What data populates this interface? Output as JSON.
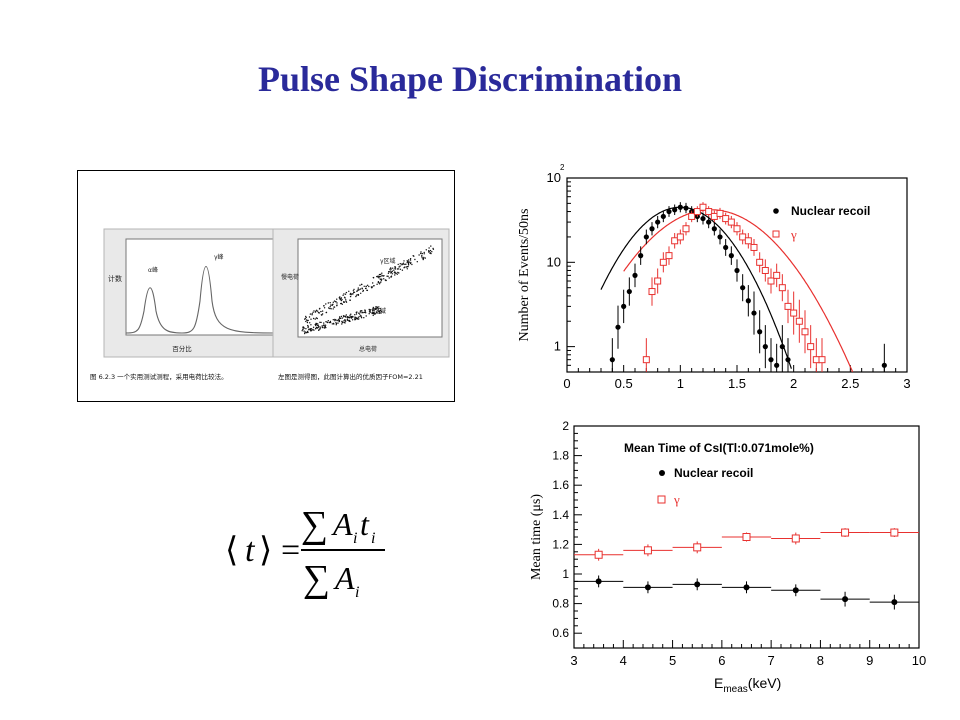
{
  "slide": {
    "title": "Pulse Shape Discrimination"
  },
  "inset_figure": {
    "left_plot": {
      "ylabel": "计数",
      "xlabel": "百分比",
      "peak_labels": [
        "α峰",
        "γ峰"
      ],
      "caption": "图 6.2.3  一个实用测试测程，采用电荷比较法。"
    },
    "right_plot": {
      "ylabel": "慢电荷",
      "xlabel": "总电荷",
      "region_labels": [
        "γ区域",
        "α区域"
      ],
      "caption": "左图是测得图，此图计算出的优质因子FOM=2.21"
    }
  },
  "formula": {
    "lhs": "t",
    "equals": "=",
    "sum": "∑",
    "num_A": "A",
    "num_t": "t",
    "sub": "i",
    "den_A": "A"
  },
  "chart_data": [
    {
      "type": "scatter",
      "ylabel": "Number of Events/50ns",
      "xlabel": "",
      "xlim": [
        0,
        3
      ],
      "ylim": [
        0.5,
        100
      ],
      "yscale": "log",
      "xticks": [
        "0",
        "0.5",
        "1",
        "1.5",
        "2",
        "2.5",
        "3"
      ],
      "yticks": [
        "1",
        "10",
        "10"
      ],
      "ytick_exponent": "2",
      "legend_position": "top-right",
      "series": [
        {
          "name": "Nuclear recoil",
          "color": "#000000",
          "marker": "filled-circle",
          "x": [
            0.4,
            0.45,
            0.5,
            0.55,
            0.6,
            0.65,
            0.7,
            0.75,
            0.8,
            0.85,
            0.9,
            0.95,
            1.0,
            1.05,
            1.1,
            1.15,
            1.2,
            1.25,
            1.3,
            1.35,
            1.4,
            1.45,
            1.5,
            1.55,
            1.6,
            1.65,
            1.7,
            1.75,
            1.8,
            1.85,
            1.9,
            1.95,
            2.8
          ],
          "y": [
            0.7,
            1.7,
            3.0,
            4.5,
            7.0,
            12.0,
            20.0,
            25.0,
            30.0,
            35.0,
            40.0,
            42.0,
            45.0,
            44.0,
            40.0,
            35.0,
            33.0,
            30.0,
            25.0,
            20.0,
            15.0,
            12.0,
            8.0,
            5.0,
            3.5,
            2.5,
            1.5,
            1.0,
            0.7,
            0.6,
            1.0,
            0.7,
            0.6
          ]
        },
        {
          "name": "γ",
          "color": "#e8312f",
          "marker": "open-square",
          "x": [
            0.7,
            0.75,
            0.8,
            0.85,
            0.9,
            0.95,
            1.0,
            1.05,
            1.1,
            1.15,
            1.2,
            1.25,
            1.3,
            1.35,
            1.4,
            1.45,
            1.5,
            1.55,
            1.6,
            1.65,
            1.7,
            1.75,
            1.8,
            1.85,
            1.9,
            1.95,
            2.0,
            2.05,
            2.1,
            2.15,
            2.2,
            2.25
          ],
          "y": [
            0.7,
            4.5,
            6.0,
            10.0,
            12.0,
            18.0,
            20.0,
            25.0,
            35.0,
            40.0,
            45.0,
            40.0,
            35.0,
            38.0,
            33.0,
            30.0,
            25.0,
            20.0,
            18.0,
            15.0,
            10.0,
            8.0,
            6.0,
            7.0,
            5.0,
            3.0,
            2.5,
            2.0,
            1.5,
            1.0,
            0.7,
            0.7
          ]
        }
      ]
    },
    {
      "type": "scatter",
      "title": "Mean Time of CsI(Tl:0.071mole%)",
      "ylabel": "Mean time (μs)",
      "xlabel": "E",
      "xlabel_sub": "meas",
      "xlabel_unit": "(keV)",
      "xlim": [
        3,
        10
      ],
      "ylim": [
        0.5,
        2.0
      ],
      "xticks": [
        "3",
        "4",
        "5",
        "6",
        "7",
        "8",
        "9",
        "10"
      ],
      "yticks": [
        "0.6",
        "0.8",
        "1",
        "1.2",
        "1.4",
        "1.6",
        "1.8",
        "2"
      ],
      "legend_position": "top-left",
      "series": [
        {
          "name": "Nuclear recoil",
          "color": "#000000",
          "marker": "filled-circle",
          "x": [
            3.5,
            4.5,
            5.5,
            6.5,
            7.5,
            8.5,
            9.5
          ],
          "y": [
            0.95,
            0.91,
            0.93,
            0.91,
            0.89,
            0.83,
            0.81
          ],
          "yerr": [
            0.04,
            0.04,
            0.04,
            0.04,
            0.04,
            0.05,
            0.05
          ]
        },
        {
          "name": "γ",
          "color": "#e8312f",
          "marker": "open-square",
          "x": [
            3.5,
            4.5,
            5.5,
            6.5,
            7.5,
            8.5,
            9.5
          ],
          "y": [
            1.13,
            1.16,
            1.18,
            1.25,
            1.24,
            1.28,
            1.28
          ],
          "yerr": [
            0.04,
            0.04,
            0.04,
            0.03,
            0.04,
            0.03,
            0.03
          ]
        }
      ]
    }
  ]
}
